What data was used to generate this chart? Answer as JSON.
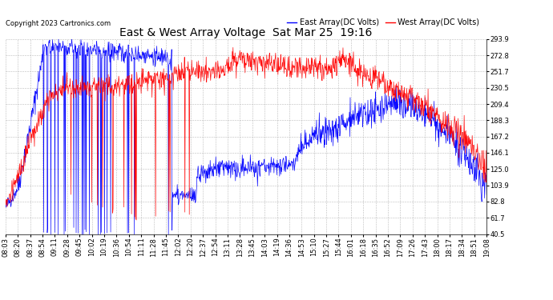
{
  "title": "East & West Array Voltage  Sat Mar 25  19:16",
  "copyright": "Copyright 2023 Cartronics.com",
  "legend_east": "East Array(DC Volts)",
  "legend_west": "West Array(DC Volts)",
  "east_color": "blue",
  "west_color": "red",
  "background_color": "#ffffff",
  "grid_color": "#aaaaaa",
  "ylim": [
    40.5,
    293.9
  ],
  "yticks": [
    40.5,
    61.7,
    82.8,
    103.9,
    125.0,
    146.1,
    167.2,
    188.3,
    209.4,
    230.5,
    251.7,
    272.8,
    293.9
  ],
  "xtick_labels": [
    "08:03",
    "08:20",
    "08:37",
    "08:54",
    "09:11",
    "09:28",
    "09:45",
    "10:02",
    "10:19",
    "10:36",
    "10:54",
    "11:11",
    "11:28",
    "11:45",
    "12:02",
    "12:20",
    "12:37",
    "12:54",
    "13:11",
    "13:28",
    "13:45",
    "14:03",
    "14:19",
    "14:36",
    "14:53",
    "15:10",
    "15:27",
    "15:44",
    "16:01",
    "16:18",
    "16:35",
    "16:52",
    "17:09",
    "17:26",
    "17:43",
    "18:00",
    "18:17",
    "18:34",
    "18:51",
    "19:08"
  ],
  "title_fontsize": 10,
  "tick_fontsize": 6,
  "legend_fontsize": 7,
  "copyright_fontsize": 6
}
